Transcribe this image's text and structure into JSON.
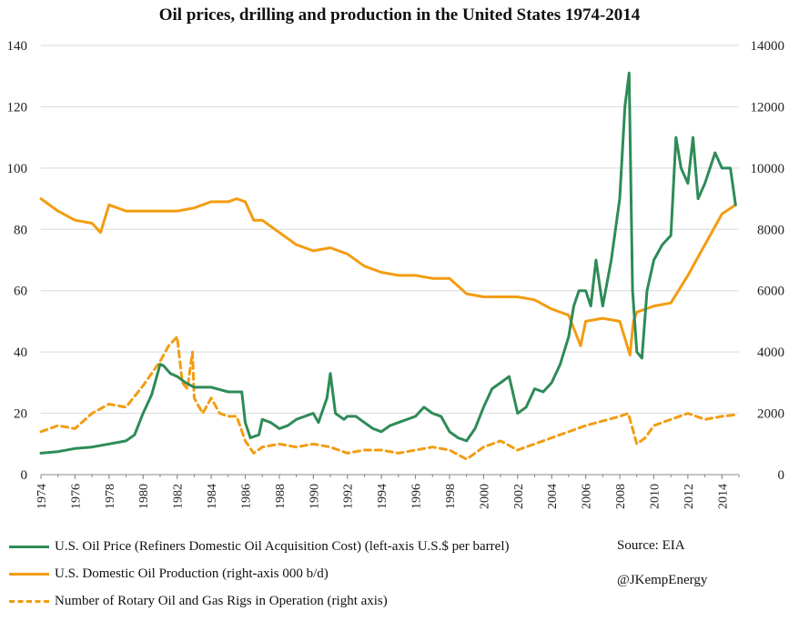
{
  "chart_data": {
    "type": "line",
    "title": "Oil prices, drilling and production in the United States 1974-2014",
    "left_axis": {
      "ylim": [
        0,
        140
      ],
      "ticks": [
        "0",
        "20",
        "40",
        "60",
        "80",
        "100",
        "120",
        "140"
      ],
      "tick_values": [
        0,
        20,
        40,
        60,
        80,
        100,
        120,
        140
      ]
    },
    "right_axis": {
      "ylim": [
        0,
        14000
      ],
      "ticks": [
        "0",
        "2000",
        "4000",
        "6000",
        "8000",
        "10000",
        "12000",
        "14000"
      ],
      "tick_values": [
        0,
        2000,
        4000,
        6000,
        8000,
        10000,
        12000,
        14000
      ]
    },
    "x_axis": {
      "xlim": [
        1974,
        2015
      ],
      "ticks": [
        "1974",
        "1976",
        "1978",
        "1980",
        "1982",
        "1984",
        "1986",
        "1988",
        "1990",
        "1992",
        "1994",
        "1996",
        "1998",
        "2000",
        "2002",
        "2004",
        "2006",
        "2008",
        "2010",
        "2012",
        "2014"
      ],
      "tick_values": [
        1974,
        1976,
        1978,
        1980,
        1982,
        1984,
        1986,
        1988,
        1990,
        1992,
        1994,
        1996,
        1998,
        2000,
        2002,
        2004,
        2006,
        2008,
        2010,
        2012,
        2014
      ]
    },
    "series": [
      {
        "name": "U.S. Oil Price (Refiners Domestic Oil Acquisition Cost) (left-axis U.S.$ per barrel)",
        "axis": "left",
        "color": "#2e8b57",
        "dash": false,
        "x": [
          1974,
          1975,
          1976,
          1977,
          1978,
          1979,
          1979.5,
          1980,
          1980.5,
          1981,
          1981.2,
          1981.6,
          1982,
          1982.5,
          1983,
          1984,
          1985,
          1985.8,
          1986,
          1986.3,
          1986.8,
          1987,
          1987.5,
          1988,
          1988.5,
          1989,
          1989.5,
          1990,
          1990.3,
          1990.8,
          1991,
          1991.3,
          1991.8,
          1992,
          1992.5,
          1993,
          1993.5,
          1994,
          1994.5,
          1995,
          1996,
          1996.5,
          1997,
          1997.5,
          1998,
          1998.5,
          1999,
          1999.5,
          2000,
          2000.5,
          2001,
          2001.5,
          2002,
          2002.5,
          2003,
          2003.5,
          2004,
          2004.5,
          2005,
          2005.3,
          2005.6,
          2006,
          2006.3,
          2006.6,
          2007,
          2007.5,
          2008,
          2008.3,
          2008.55,
          2008.75,
          2009,
          2009.3,
          2009.6,
          2010,
          2010.5,
          2011,
          2011.3,
          2011.6,
          2012,
          2012.3,
          2012.6,
          2013,
          2013.3,
          2013.6,
          2014,
          2014.5,
          2014.8
        ],
        "values": [
          7,
          7.5,
          8.5,
          9,
          10,
          11,
          13,
          20,
          26,
          36,
          35.5,
          33,
          32,
          30,
          28.5,
          28.5,
          27,
          27,
          17,
          12,
          13,
          18,
          17,
          15,
          16,
          18,
          19,
          20,
          17,
          25,
          33,
          20,
          18,
          19,
          19,
          17,
          15,
          14,
          16,
          17,
          19,
          22,
          20,
          19,
          14,
          12,
          11,
          15,
          22,
          28,
          30,
          32,
          20,
          22,
          28,
          27,
          30,
          36,
          45,
          55,
          60,
          60,
          55,
          70,
          55,
          70,
          90,
          120,
          131,
          60,
          40,
          38,
          60,
          70,
          75,
          78,
          110,
          100,
          95,
          110,
          90,
          95,
          100,
          105,
          100,
          100,
          88
        ]
      },
      {
        "name": "U.S. Domestic Oil Production (right-axis 000 b/d)",
        "axis": "right",
        "color": "#f39c12",
        "dash": false,
        "x": [
          1974,
          1975,
          1976,
          1977,
          1977.5,
          1978,
          1979,
          1980,
          1981,
          1982,
          1983,
          1984,
          1985,
          1985.5,
          1986,
          1986.5,
          1987,
          1988,
          1989,
          1990,
          1991,
          1992,
          1993,
          1994,
          1995,
          1996,
          1997,
          1998,
          1999,
          2000,
          2001,
          2002,
          2003,
          2004,
          2005,
          2005.7,
          2006,
          2007,
          2008,
          2008.6,
          2008.8,
          2009,
          2010,
          2011,
          2012,
          2013,
          2014,
          2014.8
        ],
        "values": [
          9000,
          8600,
          8300,
          8200,
          7900,
          8800,
          8600,
          8600,
          8600,
          8600,
          8700,
          8900,
          8900,
          9000,
          8900,
          8300,
          8300,
          7900,
          7500,
          7300,
          7400,
          7200,
          6800,
          6600,
          6500,
          6500,
          6400,
          6400,
          5900,
          5800,
          5800,
          5800,
          5700,
          5400,
          5200,
          4200,
          5000,
          5100,
          5000,
          3900,
          5000,
          5300,
          5500,
          5600,
          6500,
          7500,
          8500,
          8800
        ]
      },
      {
        "name": "Number of Rotary Oil and Gas Rigs in Operation (right axis)",
        "axis": "right",
        "color": "#f39c12",
        "dash": true,
        "x": [
          1974,
          1975,
          1976,
          1977,
          1978,
          1979,
          1980,
          1981,
          1981.5,
          1982,
          1982.3,
          1982.6,
          1982.9,
          1983,
          1983.5,
          1984,
          1984.5,
          1985,
          1985.5,
          1986,
          1986.5,
          1987,
          1988,
          1989,
          1990,
          1991,
          1992,
          1993,
          1994,
          1995,
          1996,
          1997,
          1998,
          1999,
          2000,
          2001,
          2002,
          2003,
          2004,
          2005,
          2006,
          2007,
          2008,
          2008.5,
          2009,
          2009.5,
          2010,
          2011,
          2012,
          2013,
          2014,
          2014.8
        ],
        "values": [
          1400,
          1600,
          1500,
          2000,
          2300,
          2200,
          2900,
          3700,
          4200,
          4500,
          3000,
          2800,
          4000,
          2500,
          2000,
          2500,
          2000,
          1900,
          1900,
          1100,
          700,
          900,
          1000,
          900,
          1000,
          900,
          700,
          800,
          800,
          700,
          800,
          900,
          800,
          500,
          900,
          1100,
          800,
          1000,
          1200,
          1400,
          1600,
          1750,
          1900,
          2000,
          1000,
          1200,
          1600,
          1800,
          2000,
          1800,
          1900,
          1950
        ]
      }
    ]
  },
  "legend": {
    "items": [
      "U.S. Oil Price (Refiners Domestic Oil Acquisition Cost) (left-axis U.S.$ per barrel)",
      "U.S. Domestic Oil Production (right-axis 000 b/d)",
      "Number of Rotary Oil and Gas Rigs in Operation (right axis)"
    ]
  },
  "source": "Source: EIA",
  "handle": "@JKempEnergy",
  "colors": {
    "green": "#2e8b57",
    "orange": "#f39c12",
    "grid": "#d9d9d9",
    "axis": "#888888"
  }
}
